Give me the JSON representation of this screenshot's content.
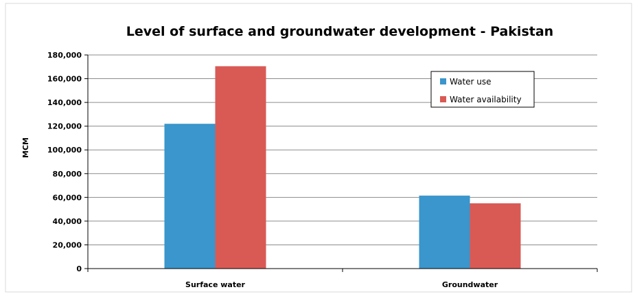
{
  "chart_data": {
    "type": "bar",
    "title": "Level of surface and groundwater development - Pakistan",
    "xlabel": "",
    "ylabel": "MCM",
    "categories": [
      "Surface water",
      "Groundwater"
    ],
    "series": [
      {
        "name": "Water use",
        "values": [
          122000,
          61500
        ],
        "color": "#3a96cc"
      },
      {
        "name": "Water availability",
        "values": [
          170500,
          55000
        ],
        "color": "#d95a55"
      }
    ],
    "ylim": [
      0,
      180000
    ],
    "yticks": [
      0,
      20000,
      40000,
      60000,
      80000,
      100000,
      120000,
      140000,
      160000,
      180000
    ],
    "ytick_labels": [
      "0",
      "20,000",
      "40,000",
      "60,000",
      "80,000",
      "100,000",
      "120,000",
      "140,000",
      "160,000",
      "180,000"
    ],
    "grid": true,
    "legend_position": "top-right"
  }
}
